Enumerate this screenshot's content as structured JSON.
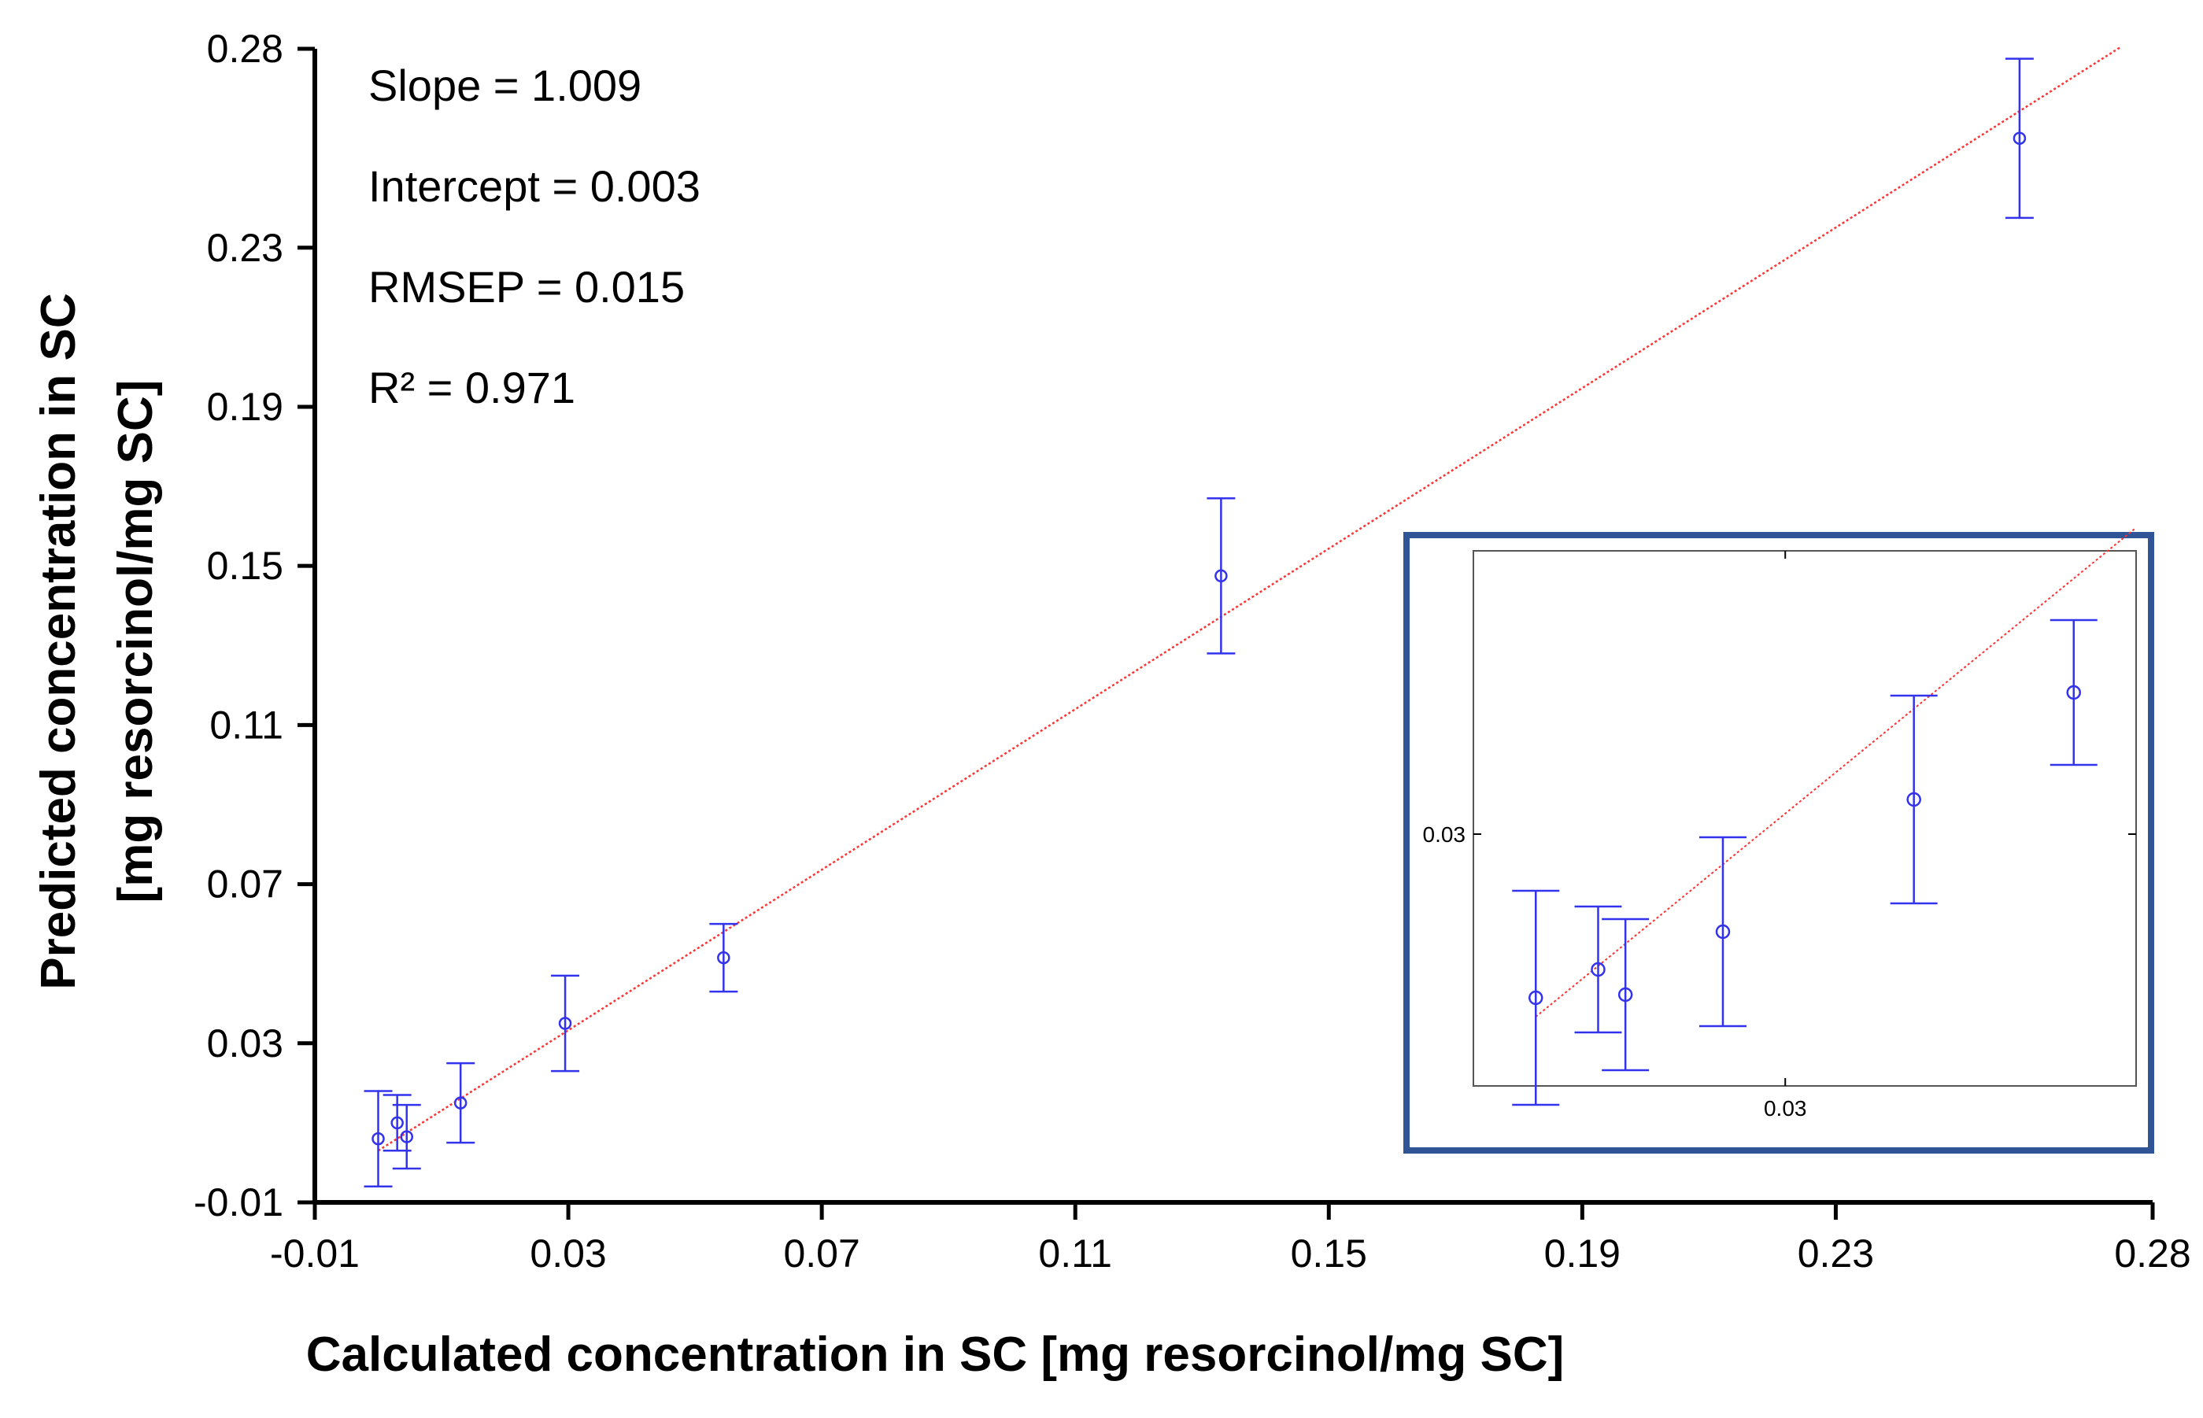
{
  "chart_data": {
    "type": "scatter",
    "xlabel": "Calculated concentration in SC [mg resorcinol/mg SC]",
    "ylabel_line1": "Predicted concentration in SC",
    "ylabel_line2": "[mg resorcinol/mg SC]",
    "xlim": [
      -0.01,
      0.28
    ],
    "ylim": [
      -0.01,
      0.28
    ],
    "xticks": [
      -0.01,
      0.03,
      0.07,
      0.11,
      0.15,
      0.19,
      0.23,
      0.28
    ],
    "yticks": [
      -0.01,
      0.03,
      0.07,
      0.11,
      0.15,
      0.19,
      0.23,
      0.28
    ],
    "xtick_labels": [
      "-0.01",
      "0.03",
      "0.07",
      "0.11",
      "0.15",
      "0.19",
      "0.23",
      "0.28"
    ],
    "ytick_labels": [
      "-0.01",
      "0.03",
      "0.07",
      "0.11",
      "0.15",
      "0.19",
      "0.23",
      "0.28"
    ],
    "grid": false,
    "stats": [
      "Slope = 1.009",
      "Intercept = 0.003",
      "RMSEP = 0.015",
      "R² = 0.971"
    ],
    "regression": {
      "slope": 1.009,
      "intercept": 0.003,
      "x_range": [
        0.0,
        0.275
      ],
      "color": "#ff3333"
    },
    "points": [
      {
        "x": 0.0,
        "y": 0.006,
        "err": 0.012
      },
      {
        "x": 0.003,
        "y": 0.01,
        "err": 0.007
      },
      {
        "x": 0.0045,
        "y": 0.0065,
        "err": 0.008
      },
      {
        "x": 0.013,
        "y": 0.015,
        "err": 0.01
      },
      {
        "x": 0.0295,
        "y": 0.035,
        "err": 0.012
      },
      {
        "x": 0.0545,
        "y": 0.0515,
        "err": 0.0085
      },
      {
        "x": 0.133,
        "y": 0.1475,
        "err": 0.0195
      },
      {
        "x": 0.259,
        "y": 0.2575,
        "err": 0.02
      }
    ],
    "point_color": "#3333ee",
    "inset": {
      "xlim": [
        -0.01,
        0.075
      ],
      "ylim": [
        -0.01,
        0.075
      ],
      "xtick_label": "0.03",
      "ytick_label": "0.03",
      "xtick": 0.03,
      "ytick": 0.03,
      "regression_x_range": [
        -0.002,
        0.075
      ],
      "border_color": "#2f5597",
      "points": [
        {
          "x": -0.002,
          "y": 0.004,
          "err": 0.017
        },
        {
          "x": 0.006,
          "y": 0.0085,
          "err": 0.01
        },
        {
          "x": 0.0095,
          "y": 0.0045,
          "err": 0.012
        },
        {
          "x": 0.022,
          "y": 0.0145,
          "err": 0.015
        },
        {
          "x": 0.0465,
          "y": 0.0355,
          "err": 0.0165
        },
        {
          "x": 0.067,
          "y": 0.0525,
          "err": 0.0115
        }
      ]
    }
  }
}
